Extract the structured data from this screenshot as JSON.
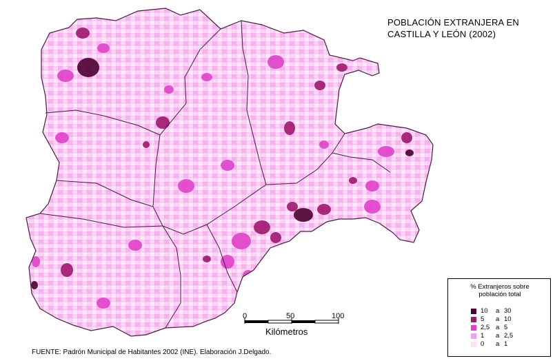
{
  "map": {
    "title_line1": "POBLACIÓN EXTRANJERA EN",
    "title_line2": "CASTILLA Y LEÓN (2002)",
    "source": "FUENTE: Padrón Municipal de Habitantes 2002 (INE). Elaboración J.Delgado."
  },
  "scale": {
    "label_0": "0",
    "label_50": "50",
    "label_100": "100",
    "unit": "Kilómetros"
  },
  "legend": {
    "title_line1": "% Extranjeros sobre",
    "title_line2": "población total",
    "classes": [
      {
        "from": "10",
        "sep": "a",
        "to": "30",
        "color": "#4a0030"
      },
      {
        "from": "5",
        "sep": "a",
        "to": "10",
        "color": "#a0166e"
      },
      {
        "from": "2,5",
        "sep": "a",
        "to": "5",
        "color": "#e040c8"
      },
      {
        "from": "1",
        "sep": "a",
        "to": "2,5",
        "color": "#f5a0f0"
      },
      {
        "from": "0",
        "sep": "a",
        "to": "1",
        "color": "#fde0fb"
      }
    ]
  }
}
